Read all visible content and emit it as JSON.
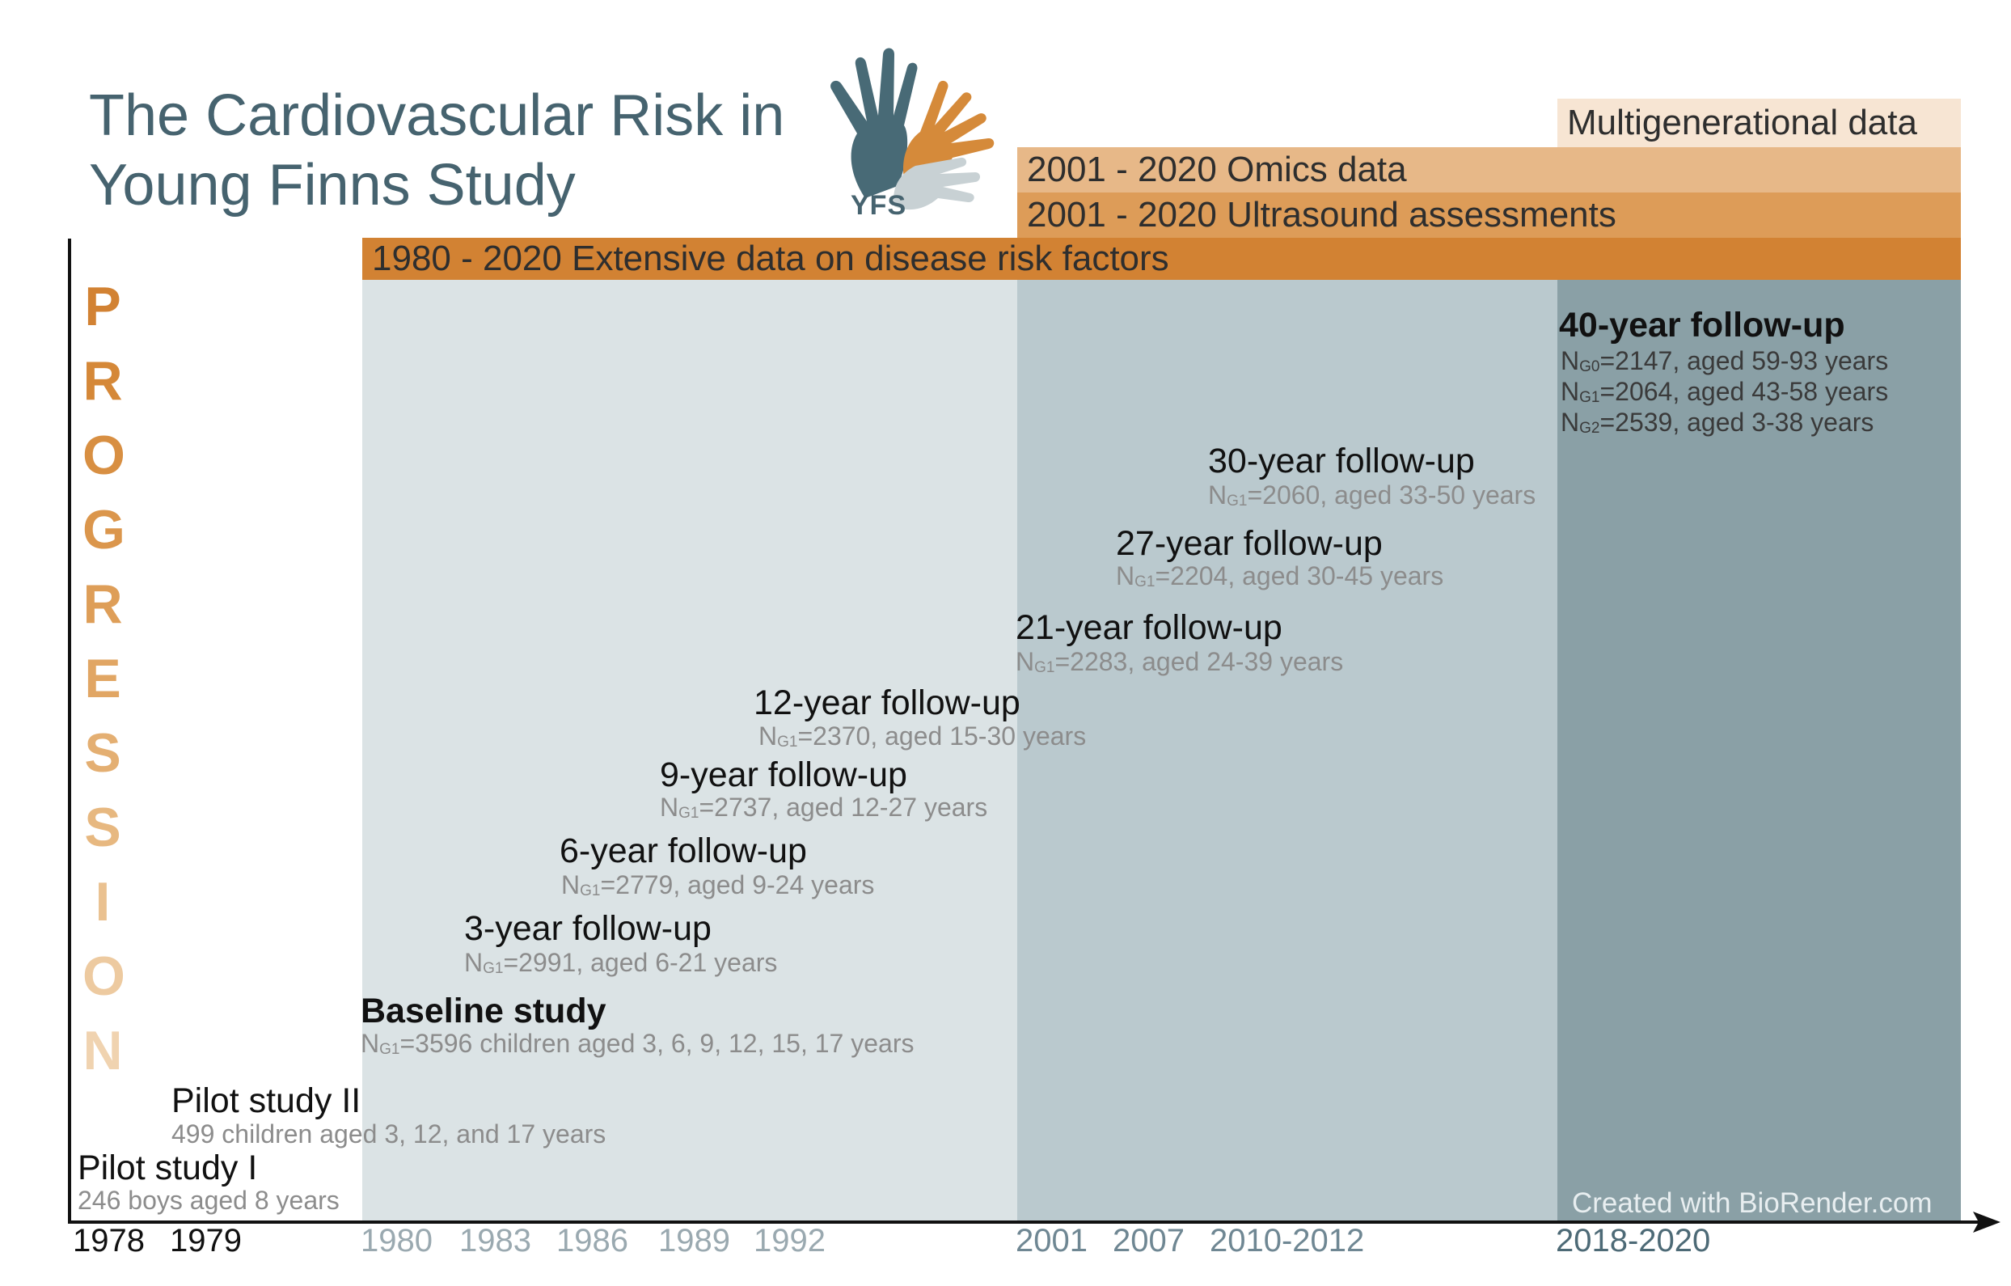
{
  "title": {
    "line1": "The Cardiovascular Risk in",
    "line2": "Young Finns Study"
  },
  "logo": {
    "text": "YFS"
  },
  "vertical_label": [
    "P",
    "R",
    "O",
    "G",
    "R",
    "E",
    "S",
    "S",
    "I",
    "O",
    "N"
  ],
  "bands": {
    "multigenerational": "Multigenerational data",
    "omics": "2001 - 2020 Omics data",
    "ultrasound": "2001 - 2020 Ultrasound assessments",
    "risk_factors": "1980 - 2020 Extensive data on disease risk factors"
  },
  "studies": {
    "pilot1": {
      "title": "Pilot study I",
      "detail": "246 boys aged 8 years"
    },
    "pilot2": {
      "title": "Pilot study II",
      "detail": "499 children aged 3, 12, and 17 years"
    },
    "baseline": {
      "title": "Baseline study",
      "n": "N",
      "sub": "G1",
      "detail": "=3596 children aged 3, 6, 9, 12, 15, 17 years"
    },
    "fu3": {
      "title": "3-year follow-up",
      "n": "N",
      "sub": "G1",
      "detail": "=2991, aged 6-21 years"
    },
    "fu6": {
      "title": "6-year follow-up",
      "n": "N",
      "sub": "G1",
      "detail": "=2779, aged 9-24 years"
    },
    "fu9": {
      "title": "9-year follow-up",
      "n": "N",
      "sub": "G1",
      "detail": "=2737, aged 12-27 years"
    },
    "fu12": {
      "title": "12-year follow-up",
      "n": "N",
      "sub": "G1",
      "detail": "=2370, aged 15-30 years"
    },
    "fu21": {
      "title": "21-year follow-up",
      "n": "N",
      "sub": "G1",
      "detail": "=2283, aged 24-39 years"
    },
    "fu27": {
      "title": "27-year follow-up",
      "n": "N",
      "sub": "G1",
      "detail": "=2204, aged 30-45 years"
    },
    "fu30": {
      "title": "30-year follow-up",
      "n": "N",
      "sub": "G1",
      "detail": "=2060, aged 33-50 years"
    },
    "fu40": {
      "title": "40-year follow-up",
      "lines": [
        {
          "n": "N",
          "sub": "G0",
          "detail": "=2147, aged 59-93 years"
        },
        {
          "n": "N",
          "sub": "G1",
          "detail": "=2064, aged 43-58 years"
        },
        {
          "n": "N",
          "sub": "G2",
          "detail": "=2539, aged 3-38 years"
        }
      ]
    }
  },
  "axis_ticks": [
    "1978",
    "1979",
    "1980",
    "1983",
    "1986",
    "1989",
    "1992",
    "2001",
    "2007",
    "2010-2012",
    "2018-2020"
  ],
  "credit": "Created with BioRender.com",
  "colors": {
    "title": "#46636f",
    "band_multigen": "#f7e5d3",
    "band_omics": "#e7b888",
    "band_ultrasound": "#dd9c58",
    "band_risk": "#d28233",
    "panel_1980": "#dbe3e5",
    "panel_2001": "#bac9ce",
    "panel_2018": "#8aa0a6"
  }
}
